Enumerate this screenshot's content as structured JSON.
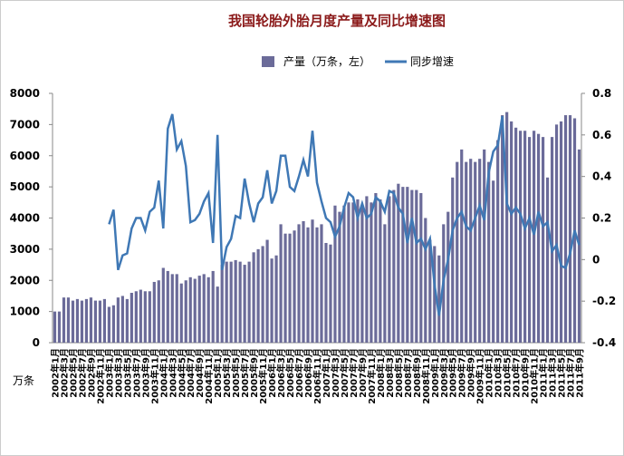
{
  "chart_data": {
    "type": "bar-line",
    "title": "我国轮胎外胎月度产量及同比增速图",
    "y_axis_label": "万条",
    "categories": [
      "2002年1月",
      null,
      "2002年3月",
      null,
      "2002年5月",
      null,
      "2002年7月",
      null,
      "2002年9月",
      null,
      "2002年11月",
      null,
      "2003年1月",
      null,
      "2003年3月",
      null,
      "2003年5月",
      null,
      "2003年7月",
      null,
      "2003年9月",
      null,
      "2003年11月",
      null,
      "2004年1月",
      null,
      "2004年3月",
      null,
      "2004年5月",
      null,
      "2004年7月",
      null,
      "2004年9月",
      null,
      "2004年11月",
      null,
      "2005年1月",
      null,
      "2005年3月",
      null,
      "2005年5月",
      null,
      "2005年7月",
      null,
      "2005年9月",
      null,
      "2005年11月",
      null,
      "2006年1月",
      null,
      "2006年3月",
      null,
      "2006年5月",
      null,
      "2006年7月",
      null,
      "2006年9月",
      null,
      "2006年11月",
      null,
      "2007年1月",
      null,
      "2007年3月",
      null,
      "2007年5月",
      null,
      "2007年7月",
      null,
      "2007年9月",
      null,
      "2007年11月",
      null,
      "2008年1月",
      null,
      "2008年3月",
      null,
      "2008年5月",
      null,
      "2008年7月",
      null,
      "2008年9月",
      null,
      "2008年11月",
      null,
      "2009年1月",
      null,
      "2009年3月",
      null,
      "2009年5月",
      null,
      "2009年7月",
      null,
      "2009年9月",
      null,
      "2009年11月",
      null,
      "2010年1月",
      null,
      "2010年3月",
      null,
      "2010年5月",
      null,
      "2010年7月",
      null,
      "2010年9月",
      null,
      "2010年11月",
      null,
      "2011年1月",
      null,
      "2011年3月",
      null,
      "2011年5月",
      null,
      "2011年7月",
      null,
      "2011年9月"
    ],
    "series": [
      {
        "name": "产量（万条，左）",
        "color": "#6b6b99",
        "values": [
          1000,
          1000,
          1450,
          1450,
          1350,
          1400,
          1350,
          1400,
          1450,
          1350,
          1350,
          1400,
          1150,
          1200,
          1450,
          1500,
          1400,
          1600,
          1650,
          1700,
          1650,
          1650,
          1950,
          2000,
          2400,
          2300,
          2200,
          2200,
          1900,
          2000,
          2100,
          2050,
          2150,
          2200,
          2100,
          2300,
          1800,
          2500,
          2600,
          2600,
          2650,
          2600,
          2500,
          2600,
          2900,
          3000,
          3100,
          3300,
          2700,
          2800,
          3800,
          3500,
          3500,
          3600,
          3800,
          3900,
          3700,
          3950,
          3700,
          3800,
          3200,
          3150,
          4400,
          4200,
          4400,
          4500,
          4500,
          4600,
          4400,
          4700,
          4500,
          4800,
          4600,
          3800,
          4700,
          4900,
          5100,
          5000,
          5000,
          4900,
          4900,
          4800,
          4000,
          3300,
          3100,
          2800,
          3800,
          4200,
          5300,
          5800,
          6200,
          5800,
          5900,
          5800,
          5900,
          6200,
          5800,
          5200,
          6500,
          7300,
          7400,
          7100,
          6900,
          6800,
          6800,
          6600,
          6800,
          6700,
          6600,
          5300,
          6600,
          7000,
          7100,
          7300,
          7300,
          7200,
          6200
        ]
      },
      {
        "name": "同步增速",
        "color": "#3f78b5",
        "axis": "y2",
        "values": [
          null,
          null,
          null,
          null,
          null,
          null,
          null,
          null,
          null,
          null,
          null,
          null,
          0.17,
          0.24,
          -0.05,
          0.02,
          0.03,
          0.15,
          0.2,
          0.2,
          0.14,
          0.23,
          0.25,
          0.38,
          0.15,
          0.63,
          0.7,
          0.53,
          0.57,
          0.45,
          0.18,
          0.19,
          0.22,
          0.28,
          0.32,
          0.08,
          0.6,
          -0.05,
          0.06,
          0.1,
          0.21,
          0.2,
          0.39,
          0.27,
          0.18,
          0.27,
          0.3,
          0.43,
          0.27,
          0.33,
          0.5,
          0.5,
          0.35,
          0.33,
          0.4,
          0.48,
          0.4,
          0.62,
          0.37,
          0.28,
          0.2,
          0.18,
          0.11,
          0.16,
          0.25,
          0.32,
          0.3,
          0.2,
          0.27,
          0.2,
          0.22,
          0.3,
          0.28,
          0.23,
          0.33,
          0.32,
          0.25,
          0.22,
          0.08,
          0.2,
          0.08,
          0.1,
          0.05,
          0.1,
          -0.12,
          -0.27,
          -0.1,
          0.0,
          0.14,
          0.2,
          0.23,
          0.16,
          0.14,
          0.2,
          0.26,
          0.19,
          0.42,
          0.52,
          0.55,
          0.69,
          0.27,
          0.22,
          0.25,
          0.22,
          0.15,
          0.2,
          0.12,
          0.23,
          0.16,
          0.18,
          0.04,
          0.07,
          -0.03,
          -0.04,
          0.03,
          0.14,
          0.07
        ]
      }
    ],
    "ylim": [
      0,
      8000
    ],
    "yticks": [
      0,
      1000,
      2000,
      3000,
      4000,
      5000,
      6000,
      7000,
      8000
    ],
    "y2lim": [
      -0.4,
      0.8
    ],
    "y2ticks": [
      -0.4,
      -0.2,
      0,
      0.2,
      0.4,
      0.6,
      0.8
    ],
    "legend": "top"
  }
}
